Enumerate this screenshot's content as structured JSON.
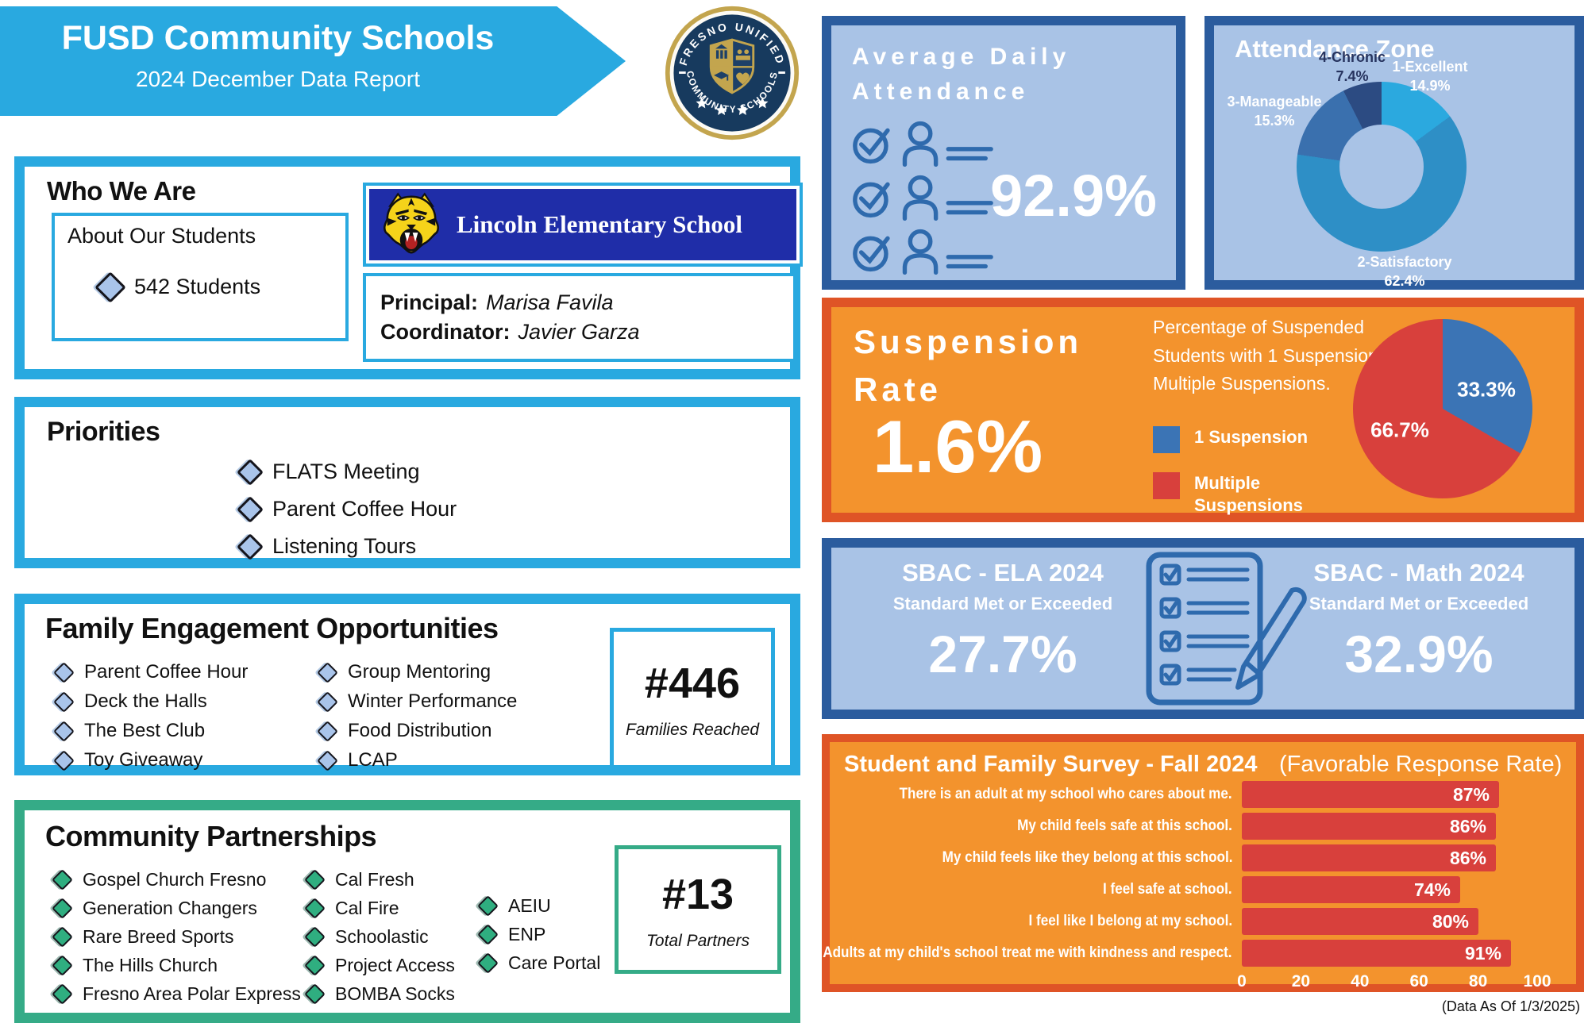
{
  "header": {
    "title": "FUSD Community Schools",
    "subtitle": "2024 December Data Report",
    "accent_color": "#29A9E0"
  },
  "logo": {
    "top_text": "FRESNO UNIFIED",
    "bottom_text": "COMMUNITY SCHOOLS",
    "navy": "#173A5E",
    "gold": "#C3A54E"
  },
  "who": {
    "title": "Who We Are",
    "about": "About Our Students",
    "students": "542 Students",
    "school": "Lincoln Elementary School",
    "principal_label": "Principal:",
    "principal": "Marisa Favila",
    "coordinator_label": "Coordinator:",
    "coordinator": "Javier Garza"
  },
  "priorities": {
    "title": "Priorities",
    "items": [
      "FLATS Meeting",
      "Parent Coffee Hour",
      "Listening Tours"
    ]
  },
  "family": {
    "title": "Family Engagement Opportunities",
    "col1": [
      "Parent Coffee Hour",
      "Deck the Halls",
      "The Best Club",
      "Toy Giveaway"
    ],
    "col2": [
      "Group Mentoring",
      "Winter Performance",
      "Food Distribution",
      "LCAP"
    ],
    "stat": "#446",
    "stat_label": "Families Reached"
  },
  "partners": {
    "title": "Community Partnerships",
    "col1": [
      "Gospel Church Fresno",
      "Generation Changers",
      "Rare Breed Sports",
      "The Hills Church",
      "Fresno Area Polar Express"
    ],
    "col2": [
      "Cal Fresh",
      "Cal Fire",
      "Schoolastic",
      "Project Access",
      "BOMBA Socks"
    ],
    "col3": [
      "AEIU",
      "ENP",
      "Care Portal"
    ],
    "stat": "#13",
    "stat_label": "Total Partners",
    "accent_color": "#35AB87"
  },
  "ada": {
    "line1": "Average Daily",
    "line2": "Attendance",
    "value": "92.9%"
  },
  "susp": {
    "title1": "Suspension",
    "title2": "Rate",
    "value": "1.6%",
    "desc": "Percentage of Suspended Students with 1 Suspension or Multiple Suspensions."
  },
  "sbac": {
    "ela_title": "SBAC - ELA 2024",
    "ela_sub": "Standard Met or Exceeded",
    "ela_value": "27.7%",
    "math_title": "SBAC - Math 2024",
    "math_sub": "Standard Met or Exceeded",
    "math_value": "32.9%"
  },
  "survey": {
    "title": "Student and Family Survey - Fall 2024",
    "subtitle": "(Favorable Response Rate)"
  },
  "footer": {
    "note": "(Data As Of 1/3/2025)"
  },
  "chart_data": [
    {
      "id": "attendance-zone",
      "type": "donut",
      "title": "Attendance Zone",
      "segments": [
        {
          "label": "1-Excellent",
          "value": 14.9,
          "color": "#2BA9DF",
          "label_color": "#ffffff"
        },
        {
          "label": "2-Satisfactory",
          "value": 62.4,
          "color": "#2E8FC6",
          "label_color": "#ffffff"
        },
        {
          "label": "3-Manageable",
          "value": 15.3,
          "color": "#3A70AE",
          "label_color": "#ffffff"
        },
        {
          "label": "4-Chronic",
          "value": 7.4,
          "color": "#2C4B82",
          "label_color": "#27345F"
        }
      ]
    },
    {
      "id": "suspension-pie",
      "type": "pie",
      "segments": [
        {
          "label": "1 Suspension",
          "value": 33.3,
          "color": "#3B74B5"
        },
        {
          "label": "Multiple Suspensions",
          "value": 66.7,
          "color": "#D8403C"
        }
      ]
    },
    {
      "id": "survey-bars",
      "type": "bar",
      "bar_color": "#D8403C",
      "xmax": 100,
      "xticks": [
        0,
        20,
        40,
        60,
        80,
        100
      ],
      "items": [
        {
          "label": "There is an adult at my school who cares about me.",
          "value": 87
        },
        {
          "label": "My child feels safe at this school.",
          "value": 86
        },
        {
          "label": "My child feels like they belong at this school.",
          "value": 86
        },
        {
          "label": "I feel safe at school.",
          "value": 74
        },
        {
          "label": "I feel like I belong at my school.",
          "value": 80
        },
        {
          "label": "Adults at my child's school treat me with kindness and respect.",
          "value": 91
        }
      ]
    }
  ]
}
